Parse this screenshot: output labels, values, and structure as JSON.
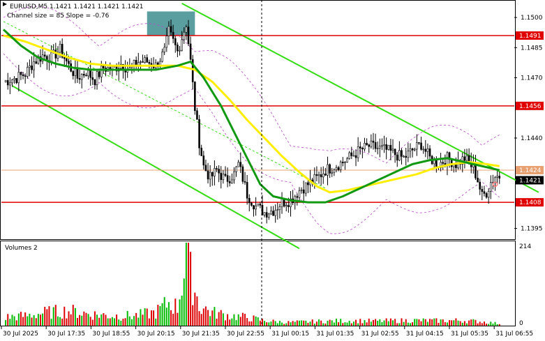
{
  "header": {
    "symbol_line": "EURUSD,M5  1.1421 1.1421 1.1421 1.1421",
    "info_line": "Channel size = 85 Slope = -0.76"
  },
  "volumes_panel": {
    "title": "Volumes 2",
    "scale_max": "214",
    "scale_min": "0"
  },
  "colors": {
    "level_line": "#e00000",
    "channel_line": "#33dd11",
    "ma_fast": "#ffee00",
    "ma_slow": "#119911",
    "candle": "#000000",
    "volume_up": "#00bb00",
    "volume_down": "#dd0000",
    "zone": "#5b9ea0",
    "envelope": "#bb44cc"
  },
  "icons": [
    "expand-triangle-icon",
    "circle-marker-icon"
  ],
  "chart_data": {
    "type": "candlestick",
    "ylim": [
      1.139,
      1.1508
    ],
    "y_ticks": [
      "1.1500",
      "1.1485",
      "1.1470",
      "1.1440",
      "1.1395"
    ],
    "x_ticks": [
      "30 Jul 2025",
      "30 Jul 17:35",
      "30 Jul 18:55",
      "30 Jul 20:15",
      "30 Jul 21:35",
      "30 Jul 22:55",
      "31 Jul 00:15",
      "31 Jul 01:35",
      "31 Jul 02:55",
      "31 Jul 04:15",
      "31 Jul 05:35",
      "31 Jul 06:55"
    ],
    "levels": [
      {
        "label": "1.1491",
        "value": 1.1491
      },
      {
        "label": "1.1456",
        "value": 1.1456
      },
      {
        "label": "1.1408",
        "value": 1.1408
      }
    ],
    "current_price": {
      "label": "1.1421",
      "value": 1.1421
    },
    "price_line": {
      "label": "1.1424",
      "value": 1.1424
    },
    "zone": {
      "bar_from": 66,
      "bar_to": 88,
      "price_low": 1.1491,
      "price_high": 1.1503
    },
    "close_path": [
      [
        0,
        1.1468
      ],
      [
        6,
        1.147
      ],
      [
        10,
        1.1472
      ],
      [
        14,
        1.1478
      ],
      [
        18,
        1.1481
      ],
      [
        22,
        1.148
      ],
      [
        26,
        1.1484
      ],
      [
        30,
        1.1476
      ],
      [
        34,
        1.147
      ],
      [
        38,
        1.1473
      ],
      [
        42,
        1.1469
      ],
      [
        46,
        1.1475
      ],
      [
        50,
        1.1474
      ],
      [
        54,
        1.1477
      ],
      [
        58,
        1.1474
      ],
      [
        62,
        1.1478
      ],
      [
        66,
        1.1478
      ],
      [
        70,
        1.1476
      ],
      [
        74,
        1.1483
      ],
      [
        76,
        1.1493
      ],
      [
        78,
        1.1488
      ],
      [
        80,
        1.1483
      ],
      [
        82,
        1.149
      ],
      [
        84,
        1.1497
      ],
      [
        86,
        1.1478
      ],
      [
        88,
        1.1455
      ],
      [
        90,
        1.1438
      ],
      [
        92,
        1.1426
      ],
      [
        95,
        1.142
      ],
      [
        98,
        1.1424
      ],
      [
        102,
        1.1419
      ],
      [
        106,
        1.1422
      ],
      [
        108,
        1.1427
      ],
      [
        110,
        1.142
      ],
      [
        112,
        1.1412
      ],
      [
        116,
        1.1406
      ],
      [
        120,
        1.1403
      ],
      [
        124,
        1.1404
      ],
      [
        128,
        1.1408
      ],
      [
        132,
        1.1409
      ],
      [
        136,
        1.1414
      ],
      [
        140,
        1.1417
      ],
      [
        144,
        1.142
      ],
      [
        148,
        1.1424
      ],
      [
        152,
        1.1426
      ],
      [
        156,
        1.1428
      ],
      [
        160,
        1.1431
      ],
      [
        164,
        1.1434
      ],
      [
        168,
        1.1436
      ],
      [
        172,
        1.1435
      ],
      [
        176,
        1.1434
      ],
      [
        180,
        1.1432
      ],
      [
        184,
        1.143
      ],
      [
        188,
        1.1434
      ],
      [
        192,
        1.1437
      ],
      [
        196,
        1.143
      ],
      [
        200,
        1.1427
      ],
      [
        204,
        1.143
      ],
      [
        208,
        1.1427
      ],
      [
        212,
        1.143
      ],
      [
        216,
        1.1425
      ],
      [
        218,
        1.1419
      ],
      [
        220,
        1.1411
      ],
      [
        222,
        1.1413
      ],
      [
        224,
        1.1418
      ],
      [
        226,
        1.1421
      ],
      [
        228,
        1.1421
      ]
    ],
    "ma_fast": [
      [
        0,
        1.1491
      ],
      [
        10,
        1.1488
      ],
      [
        20,
        1.1484
      ],
      [
        30,
        1.148
      ],
      [
        40,
        1.1477
      ],
      [
        50,
        1.1476
      ],
      [
        60,
        1.1476
      ],
      [
        70,
        1.1476
      ],
      [
        80,
        1.1476
      ],
      [
        88,
        1.1474
      ],
      [
        96,
        1.1468
      ],
      [
        104,
        1.1459
      ],
      [
        112,
        1.1449
      ],
      [
        120,
        1.144
      ],
      [
        128,
        1.1431
      ],
      [
        136,
        1.1423
      ],
      [
        144,
        1.1416
      ],
      [
        150,
        1.1413
      ],
      [
        158,
        1.1414
      ],
      [
        166,
        1.1416
      ],
      [
        174,
        1.1418
      ],
      [
        182,
        1.142
      ],
      [
        190,
        1.1422
      ],
      [
        198,
        1.1425
      ],
      [
        206,
        1.1427
      ],
      [
        214,
        1.1428
      ],
      [
        222,
        1.1427
      ],
      [
        228,
        1.1426
      ]
    ],
    "ma_slow": [
      [
        0,
        1.1494
      ],
      [
        8,
        1.1486
      ],
      [
        16,
        1.148
      ],
      [
        24,
        1.1477
      ],
      [
        32,
        1.1475
      ],
      [
        40,
        1.1474
      ],
      [
        50,
        1.1474
      ],
      [
        60,
        1.1474
      ],
      [
        70,
        1.1474
      ],
      [
        80,
        1.1476
      ],
      [
        86,
        1.1478
      ],
      [
        92,
        1.147
      ],
      [
        100,
        1.1456
      ],
      [
        106,
        1.1443
      ],
      [
        112,
        1.143
      ],
      [
        118,
        1.1417
      ],
      [
        124,
        1.1411
      ],
      [
        132,
        1.1409
      ],
      [
        140,
        1.1408
      ],
      [
        148,
        1.1408
      ],
      [
        156,
        1.1411
      ],
      [
        164,
        1.1415
      ],
      [
        172,
        1.1419
      ],
      [
        180,
        1.1423
      ],
      [
        188,
        1.1427
      ],
      [
        196,
        1.1429
      ],
      [
        204,
        1.143
      ],
      [
        212,
        1.1428
      ],
      [
        220,
        1.1426
      ],
      [
        228,
        1.1424
      ]
    ],
    "channel_lines": [
      [
        [
          4,
          1.1466
        ],
        [
          136,
          1.1385
        ]
      ],
      [
        [
          82,
          1.1507
        ],
        [
          246,
          1.1413
        ]
      ],
      [
        [
          0,
          1.1498
        ],
        [
          148,
          1.1415
        ]
      ]
    ],
    "volumes_max": 214,
    "volumes_path": [
      [
        0,
        25
      ],
      [
        10,
        30
      ],
      [
        20,
        40
      ],
      [
        30,
        45
      ],
      [
        40,
        35
      ],
      [
        50,
        30
      ],
      [
        60,
        30
      ],
      [
        70,
        40
      ],
      [
        76,
        70
      ],
      [
        80,
        55
      ],
      [
        84,
        214
      ],
      [
        86,
        150
      ],
      [
        88,
        110
      ],
      [
        90,
        60
      ],
      [
        96,
        40
      ],
      [
        104,
        30
      ],
      [
        112,
        25
      ],
      [
        120,
        15
      ],
      [
        130,
        10
      ],
      [
        140,
        12
      ],
      [
        150,
        14
      ],
      [
        160,
        15
      ],
      [
        170,
        14
      ],
      [
        180,
        15
      ],
      [
        190,
        16
      ],
      [
        200,
        15
      ],
      [
        210,
        16
      ],
      [
        220,
        12
      ],
      [
        228,
        6
      ]
    ]
  }
}
